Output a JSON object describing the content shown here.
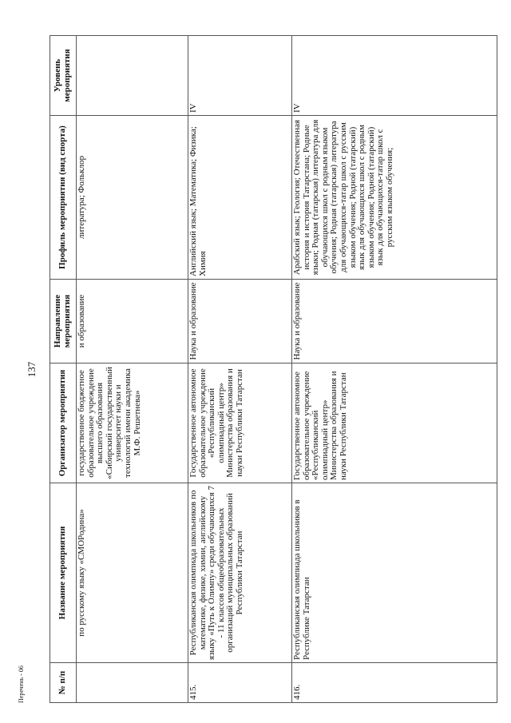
{
  "page_number": "137",
  "footer": "Перечень - 06",
  "table": {
    "headers": [
      "№ п/п",
      "Название мероприятия",
      "Организатор мероприятия",
      "Направление мероприятия",
      "Профиль мероприятия (вид спорта)",
      "Уровень мероприятия"
    ],
    "rows": [
      {
        "num": "",
        "name": "по русскому языку «СМОРодина»",
        "organizer": "государственное бюджетное образовательное учреждение высшего образования «Сибирский государственный университет науки и технологий имени академика М.Ф. Решетнева»",
        "direction": "и образование",
        "profile": "литература; Фольклор",
        "level": ""
      },
      {
        "num": "415.",
        "name": "Республиканская олимпиада школьников по математике, физике, химии, английскому языку «Путь к Олимпу» среди обучающихся 7 - 11 классов общеобразовательных организаций муниципальных образований Республики Татарстан",
        "organizer": "Государственное автономное образовательное учреждение «Республиканский олимпиадный центр» Министерства образования и науки Республики Татарстан",
        "direction": "Наука и образование",
        "profile": "Английский язык; Математика; Физика; Химия",
        "level": "IV"
      },
      {
        "num": "416.",
        "name": "Республиканская олимпиада школьников в Республике Татарстан",
        "organizer": "Государственное автономное образовательное учреждение «Республиканский олимпиадный центр» Министерства образования и науки Республики Татарстан",
        "direction": "Наука и образование",
        "profile": "Арабский язык; Геология; Отечественная история и история Татарстана; Родные языки; Родная (татарская) литература для обучающихся школ с родным языком обучения; Родная (татарская) литература для обучающихся-татар школ с русским языком обучения; Родной (татарский) язык для обучающихся школ с родным языком обучения; Родной (татарский) язык для обучающихся-татар школ с русским языком обучения;",
        "level": "IV"
      }
    ]
  }
}
